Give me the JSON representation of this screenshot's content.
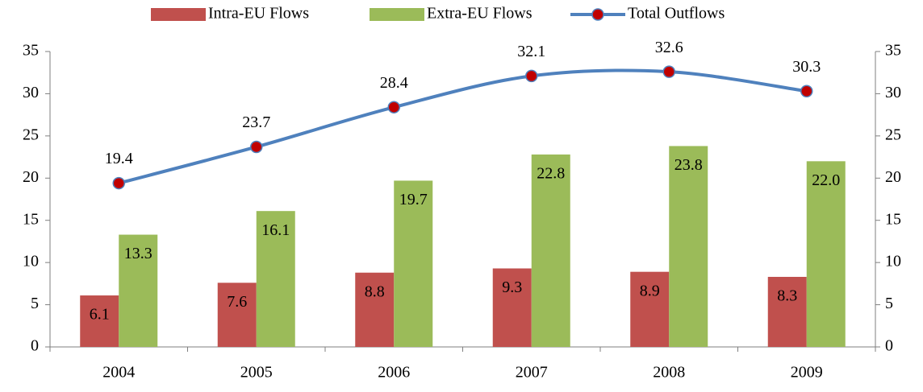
{
  "chart_data": {
    "type": "bar",
    "categories": [
      "2004",
      "2005",
      "2006",
      "2007",
      "2008",
      "2009"
    ],
    "series": [
      {
        "name": "Intra-EU Flows",
        "type": "bar",
        "color": "#c0504d",
        "values": [
          6.1,
          7.6,
          8.8,
          9.3,
          8.9,
          8.3
        ],
        "value_labels": [
          "6.1",
          "7.6",
          "8.8",
          "9.3",
          "8.9",
          "8.3"
        ]
      },
      {
        "name": "Extra-EU Flows",
        "type": "bar",
        "color": "#9bbb59",
        "values": [
          13.3,
          16.1,
          19.7,
          22.8,
          23.8,
          22.0
        ],
        "value_labels": [
          "13.3",
          "16.1",
          "19.7",
          "22.8",
          "23.8",
          "22.0"
        ]
      },
      {
        "name": "Total Outflows",
        "type": "line",
        "axis": "y2",
        "color": "#4f81bd",
        "marker_color": "#c00000",
        "values": [
          19.4,
          23.7,
          28.4,
          32.1,
          32.6,
          30.3
        ],
        "value_labels": [
          "19.4",
          "23.7",
          "28.4",
          "32.1",
          "32.6",
          "30.3"
        ]
      }
    ],
    "ylim": [
      0,
      35
    ],
    "yticks": [
      0,
      5,
      10,
      15,
      20,
      25,
      30,
      35
    ],
    "y2lim": [
      0,
      35
    ],
    "y2ticks": [
      0,
      5,
      10,
      15,
      20,
      25,
      30,
      35
    ],
    "grid": false,
    "legend": "top"
  }
}
